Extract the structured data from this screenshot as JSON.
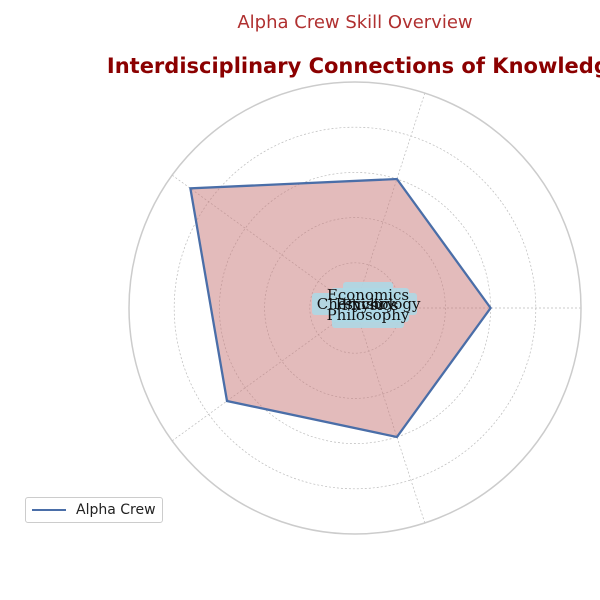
{
  "suptitle": "Alpha Crew Skill Overview",
  "title": "Interdisciplinary Connections of Knowledge",
  "colors": {
    "suptitle": "#b03030",
    "title": "#8b0000",
    "series_line": "#4a6ea8",
    "series_fill": "#c87878",
    "label_box": "#add8e6",
    "outer_circle": "#cccccc",
    "grid": "#bbbbbb"
  },
  "chart_data": {
    "type": "radar",
    "categories": [
      "Physics",
      "Economics",
      "Psychology",
      "Chemistry",
      "Philosophy"
    ],
    "series": [
      {
        "name": "Alpha Crew",
        "values": [
          6,
          6,
          9,
          7,
          6
        ]
      }
    ],
    "rlim": [
      0,
      10
    ],
    "rgrid": [
      2,
      4,
      6,
      8
    ],
    "grid": true,
    "legend_position": "lower-left"
  },
  "legend": {
    "label": "Alpha Crew"
  }
}
